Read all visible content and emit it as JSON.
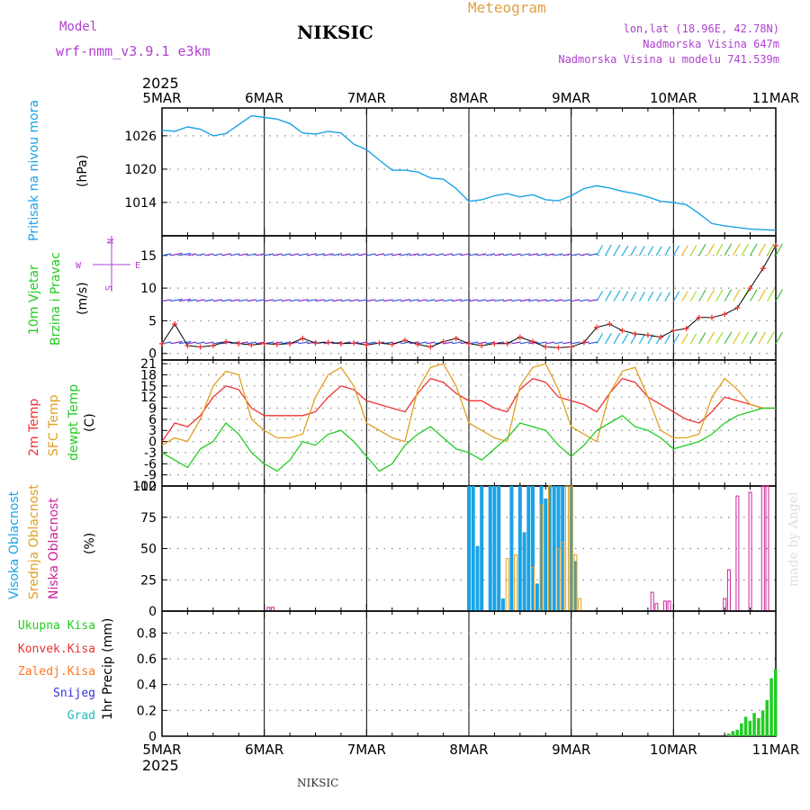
{
  "header": {
    "meteogram_label": "Meteogram",
    "model_label": "Model",
    "model_name": "wrf-nmm_v3.9.1  e3km",
    "station_title": "NIKSIC",
    "coords": "lon,lat (18.96E, 42.78N)",
    "elevation": "Nadmorska Visina 647m",
    "model_elevation": "Nadmorska Visina u modelu 741.539m",
    "year_top": "2025",
    "year_bottom": "2025",
    "footer_station": "NIKSIC",
    "watermark": "made by Angel"
  },
  "colors": {
    "pressure": "#1aa3e6",
    "wind10m": "#22cc22",
    "temp2m": "#ee3333",
    "sfc_temp": "#e0a020",
    "dewpoint": "#22cc22",
    "high_cloud": "#1aa3e6",
    "mid_cloud": "#e0a020",
    "low_cloud": "#cc2299",
    "precip_total": "#22cc22",
    "precip_conv": "#ee3333",
    "precip_frozen": "#ff7722",
    "snow": "#3333dd",
    "hail": "#22bbbb",
    "purple_text": "#b040d0",
    "meteogram": "#e0a040"
  },
  "chart_data": {
    "type": "meteogram",
    "x_labels_top": [
      "5MAR",
      "6MAR",
      "7MAR",
      "8MAR",
      "9MAR",
      "10MAR",
      "11MAR"
    ],
    "x_labels_bottom": [
      "5MAR",
      "6MAR",
      "7MAR",
      "8MAR",
      "9MAR",
      "10MAR",
      "11MAR"
    ],
    "x_range_hours": [
      0,
      144
    ],
    "panels": {
      "pressure": {
        "type": "line",
        "label_main": "Pritisak na nivou mora",
        "unit": "(hPa)",
        "ylim": [
          1008,
          1031
        ],
        "yticks": [
          1014,
          1020,
          1026
        ],
        "series": {
          "name": "MSLP",
          "x": [
            0,
            3,
            6,
            9,
            12,
            15,
            18,
            21,
            24,
            27,
            30,
            33,
            36,
            39,
            42,
            45,
            48,
            51,
            54,
            57,
            60,
            63,
            66,
            69,
            72,
            75,
            78,
            81,
            84,
            87,
            90,
            93,
            96,
            99,
            102,
            105,
            108,
            111,
            114,
            117,
            120,
            123,
            126,
            129,
            132,
            135,
            138,
            141,
            144
          ],
          "values": [
            1027,
            1026.8,
            1027.6,
            1027.2,
            1026,
            1026.4,
            1028,
            1029.6,
            1029.3,
            1029,
            1028.2,
            1026.5,
            1026.3,
            1026.8,
            1026.5,
            1024.5,
            1023.5,
            1021.6,
            1019.8,
            1019.8,
            1019.5,
            1018.4,
            1018.2,
            1016.5,
            1014.2,
            1014.5,
            1015.2,
            1015.6,
            1015,
            1015.4,
            1014.5,
            1014.3,
            1015.2,
            1016.5,
            1017,
            1016.6,
            1016,
            1015.6,
            1015,
            1014.2,
            1014,
            1013.6,
            1012,
            1010.2,
            1009.8,
            1009.5,
            1009.2,
            1009.1,
            1009
          ]
        }
      },
      "wind": {
        "type": "line+barbs",
        "label_main": "10m Vjetar",
        "label_sub": "Brzina i Pravac",
        "unit": "(m/s)",
        "ylim": [
          -1,
          18
        ],
        "yticks": [
          0,
          5,
          10,
          15
        ],
        "barb_rows_ms": [
          15,
          8,
          1.5
        ],
        "compass": {
          "n": "N",
          "s": "S",
          "w": "W",
          "e": "E"
        },
        "series": [
          {
            "name": "10m wind speed",
            "x": [
              0,
              3,
              6,
              9,
              12,
              15,
              18,
              21,
              24,
              27,
              30,
              33,
              36,
              39,
              42,
              45,
              48,
              51,
              54,
              57,
              60,
              63,
              66,
              69,
              72,
              75,
              78,
              81,
              84,
              87,
              90,
              93,
              96,
              99,
              102,
              105,
              108,
              111,
              114,
              117,
              120,
              123,
              126,
              129,
              132,
              135,
              138,
              141,
              144
            ],
            "values": [
              1.5,
              4.5,
              1.2,
              1,
              1.2,
              1.8,
              1.5,
              1.3,
              1.5,
              1.4,
              1.5,
              2.3,
              1.6,
              1.7,
              1.5,
              1.6,
              1.3,
              1.6,
              1.4,
              2,
              1.4,
              1,
              1.8,
              2.3,
              1.5,
              1.2,
              1.5,
              1.5,
              2.5,
              1.8,
              1,
              0.9,
              1,
              1.7,
              4,
              4.5,
              3.5,
              3,
              2.8,
              2.5,
              3.5,
              3.8,
              5.5,
              5.5,
              6,
              7,
              10,
              13,
              16.5
            ]
          }
        ]
      },
      "temperature": {
        "type": "line",
        "label_temp2m": "2m Temp",
        "label_sfc": "SFC Temp",
        "label_dew": "dewpt Temp",
        "unit": "(C)",
        "ylim": [
          -12,
          22
        ],
        "yticks": [
          -12,
          -9,
          -6,
          -3,
          0,
          3,
          6,
          9,
          12,
          15,
          18,
          21
        ],
        "series": [
          {
            "name": "2m Temp",
            "x": [
              0,
              3,
              6,
              9,
              12,
              15,
              18,
              21,
              24,
              27,
              30,
              33,
              36,
              39,
              42,
              45,
              48,
              51,
              54,
              57,
              60,
              63,
              66,
              69,
              72,
              75,
              78,
              81,
              84,
              87,
              90,
              93,
              96,
              99,
              102,
              105,
              108,
              111,
              114,
              117,
              120,
              123,
              126,
              129,
              132,
              135,
              138,
              141,
              144
            ],
            "values": [
              0,
              5,
              4,
              7,
              12,
              15,
              14,
              9,
              7,
              7,
              7,
              7,
              8,
              12,
              15,
              14,
              11,
              10,
              9,
              8,
              13,
              17,
              16,
              13,
              11,
              11,
              9,
              8,
              14,
              17,
              16,
              12,
              11,
              10,
              8,
              13,
              17,
              16,
              12,
              10,
              8,
              6,
              5,
              8,
              12,
              11,
              10,
              9,
              9
            ]
          },
          {
            "name": "SFC Temp",
            "x": [
              0,
              3,
              6,
              9,
              12,
              15,
              18,
              21,
              24,
              27,
              30,
              33,
              36,
              39,
              42,
              45,
              48,
              51,
              54,
              57,
              60,
              63,
              66,
              69,
              72,
              75,
              78,
              81,
              84,
              87,
              90,
              93,
              96,
              99,
              102,
              105,
              108,
              111,
              114,
              117,
              120,
              123,
              126,
              129,
              132,
              135,
              138,
              141,
              144
            ],
            "values": [
              -1,
              1,
              0,
              6,
              15,
              19,
              18,
              6,
              3,
              1,
              1,
              2,
              12,
              18,
              20,
              15,
              5,
              3,
              1,
              0,
              14,
              20,
              21,
              15,
              5,
              3,
              1,
              0,
              15,
              20,
              21,
              14,
              4,
              2,
              0,
              13,
              19,
              20,
              12,
              3,
              1,
              1,
              2,
              12,
              17,
              14,
              10,
              9,
              9
            ]
          },
          {
            "name": "dewpt Temp",
            "x": [
              0,
              3,
              6,
              9,
              12,
              15,
              18,
              21,
              24,
              27,
              30,
              33,
              36,
              39,
              42,
              45,
              48,
              51,
              54,
              57,
              60,
              63,
              66,
              69,
              72,
              75,
              78,
              81,
              84,
              87,
              90,
              93,
              96,
              99,
              102,
              105,
              108,
              111,
              114,
              117,
              120,
              123,
              126,
              129,
              132,
              135,
              138,
              141,
              144
            ],
            "values": [
              -3,
              -5,
              -7,
              -2,
              0,
              5,
              2,
              -3,
              -6,
              -8,
              -5,
              0,
              -1,
              2,
              3,
              0,
              -4,
              -8,
              -6,
              -1,
              2,
              4,
              1,
              -2,
              -3,
              -5,
              -2,
              1,
              5,
              4,
              3,
              -1,
              -4,
              -1,
              3,
              5,
              7,
              4,
              3,
              1,
              -2,
              -1,
              0,
              2,
              5,
              7,
              8,
              9,
              9
            ]
          }
        ]
      },
      "clouds": {
        "type": "bar",
        "label_high": "Visoka Oblacnost",
        "label_mid": "Srednja Oblacnost",
        "label_low": "Niska Oblacnost",
        "unit": "(%)",
        "ylim": [
          0,
          100
        ],
        "yticks": [
          0,
          25,
          50,
          75,
          100
        ],
        "series": [
          {
            "name": "Visoka Oblacnost",
            "x": [
              72,
              73,
              74,
              75,
              77,
              78,
              79,
              80,
              82,
              84,
              85,
              86,
              87,
              88,
              89,
              90,
              91,
              92,
              93,
              94,
              96,
              97
            ],
            "values": [
              100,
              100,
              52,
              100,
              100,
              100,
              100,
              10,
              100,
              100,
              63,
              100,
              100,
              22,
              100,
              90,
              100,
              100,
              100,
              100,
              100,
              40
            ]
          },
          {
            "name": "Srednja Oblacnost",
            "x": [
              81,
              83,
              87,
              89,
              91,
              93,
              94,
              95,
              96,
              97,
              98
            ],
            "values": [
              42,
              45,
              35,
              85,
              100,
              50,
              55,
              100,
              100,
              45,
              10
            ]
          },
          {
            "name": "Niska Oblacnost",
            "x": [
              25,
              26,
              115,
              116,
              118,
              119,
              132,
              133,
              135,
              138,
              141,
              142
            ],
            "values": [
              3,
              3,
              15,
              6,
              8,
              8,
              10,
              33,
              92,
              95,
              100,
              100
            ]
          }
        ]
      },
      "precip": {
        "type": "bar",
        "label_total": "Ukupna Kisa",
        "label_conv": "Konvek.Kisa",
        "label_frozen": "Zaledj.Kisa",
        "label_snow": "Snijeg",
        "label_hail": "Grad",
        "unit": "1hr Precip (mm)",
        "ylim": [
          0,
          0.97
        ],
        "yticks": [
          0,
          0.2,
          0.4,
          0.6,
          0.8
        ],
        "series": {
          "name": "Ukupna Kisa",
          "x": [
            133,
            134,
            135,
            136,
            137,
            138,
            139,
            140,
            141,
            142,
            143,
            144
          ],
          "values": [
            0.02,
            0.04,
            0.05,
            0.1,
            0.15,
            0.12,
            0.18,
            0.14,
            0.2,
            0.28,
            0.45,
            0.52
          ]
        }
      }
    }
  }
}
